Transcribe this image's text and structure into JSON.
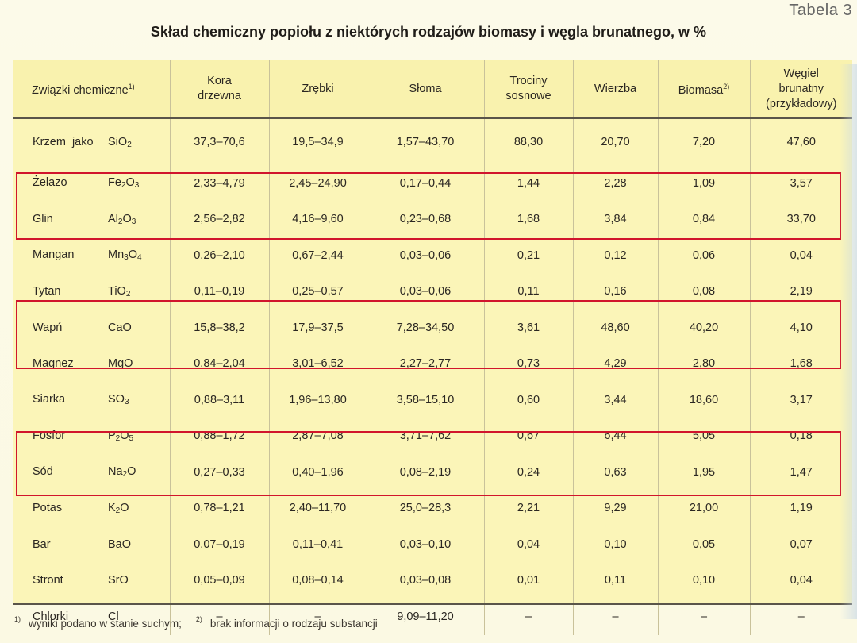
{
  "tabela_label": "Tabela 3",
  "title": "Skład chemiczny popiołu z niektórych rodzajów biomasy i węgla brunatnego, w %",
  "headers": {
    "compound": "Związki chemiczne",
    "compound_sup": "1)",
    "kora": [
      "Kora",
      "drzewna"
    ],
    "zrebki": "Zrębki",
    "sloma": "Słoma",
    "trociny": [
      "Trociny",
      "sosnowe"
    ],
    "wierzba": "Wierzba",
    "biomasa": "Biomasa",
    "biomasa_sup": "2)",
    "wegiel": [
      "Węgiel",
      "brunatny",
      "(przykładowy)"
    ]
  },
  "rows": [
    {
      "name": "Krzem  jako",
      "formula": [
        "Si",
        "O",
        "2"
      ],
      "values": [
        "37,3–70,6",
        "19,5–34,9",
        "1,57–43,70",
        "88,30",
        "20,70",
        "7,20",
        "47,60"
      ]
    },
    {
      "name": "Żelazo",
      "formula": [
        "Fe",
        "2",
        "O",
        "3"
      ],
      "values": [
        "2,33–4,79",
        "2,45–24,90",
        "0,17–0,44",
        "1,44",
        "2,28",
        "1,09",
        "3,57"
      ]
    },
    {
      "name": "Glin",
      "formula": [
        "Al",
        "2",
        "O",
        "3"
      ],
      "values": [
        "2,56–2,82",
        "4,16–9,60",
        "0,23–0,68",
        "1,68",
        "3,84",
        "0,84",
        "33,70"
      ]
    },
    {
      "name": "Mangan",
      "formula": [
        "Mn",
        "3",
        "O",
        "4"
      ],
      "values": [
        "0,26–2,10",
        "0,67–2,44",
        "0,03–0,06",
        "0,21",
        "0,12",
        "0,06",
        "0,04"
      ]
    },
    {
      "name": "Tytan",
      "formula": [
        "Ti",
        "O",
        "2"
      ],
      "values": [
        "0,11–0,19",
        "0,25–0,57",
        "0,03–0,06",
        "0,11",
        "0,16",
        "0,08",
        "2,19"
      ]
    },
    {
      "name": "Wapń",
      "formula": [
        "CaO"
      ],
      "values": [
        "15,8–38,2",
        "17,9–37,5",
        "7,28–34,50",
        "3,61",
        "48,60",
        "40,20",
        "4,10"
      ]
    },
    {
      "name": "Magnez",
      "formula": [
        "MgO"
      ],
      "values": [
        "0,84–2,04",
        "3,01–6,52",
        "2,27–2,77",
        "0,73",
        "4,29",
        "2,80",
        "1,68"
      ]
    },
    {
      "name": "Siarka",
      "formula": [
        "S",
        "O",
        "3"
      ],
      "values": [
        "0,88–3,11",
        "1,96–13,80",
        "3,58–15,10",
        "0,60",
        "3,44",
        "18,60",
        "3,17"
      ]
    },
    {
      "name": "Fosfor",
      "formula": [
        "P",
        "2",
        "O",
        "5"
      ],
      "values": [
        "0,88–1,72",
        "2,87–7,08",
        "3,71–7,62",
        "0,67",
        "6,44",
        "5,05",
        "0,18"
      ]
    },
    {
      "name": "Sód",
      "formula": [
        "Na",
        "2",
        "O"
      ],
      "values": [
        "0,27–0,33",
        "0,40–1,96",
        "0,08–2,19",
        "0,24",
        "0,63",
        "1,95",
        "1,47"
      ]
    },
    {
      "name": "Potas",
      "formula": [
        "K",
        "2",
        "O"
      ],
      "values": [
        "0,78–1,21",
        "2,40–11,70",
        "25,0–28,3",
        "2,21",
        "9,29",
        "21,00",
        "1,19"
      ]
    },
    {
      "name": "Bar",
      "formula": [
        "BaO"
      ],
      "values": [
        "0,07–0,19",
        "0,11–0,41",
        "0,03–0,10",
        "0,04",
        "0,10",
        "0,05",
        "0,07"
      ]
    },
    {
      "name": "Stront",
      "formula": [
        "SrO"
      ],
      "values": [
        "0,05–0,09",
        "0,08–0,14",
        "0,03–0,08",
        "0,01",
        "0,11",
        "0,10",
        "0,04"
      ]
    },
    {
      "name": "Chlorki",
      "formula": [
        "Cl"
      ],
      "values": [
        "–",
        "–",
        "9,09–11,20",
        "–",
        "–",
        "–",
        "–"
      ]
    }
  ],
  "highlight_color": "#d1152c",
  "footnotes": {
    "mark1": "1)",
    "text1": "wyniki podano w stanie suchym;",
    "mark2": "2)",
    "text2": "brak informacji o rodzaju substancji"
  }
}
